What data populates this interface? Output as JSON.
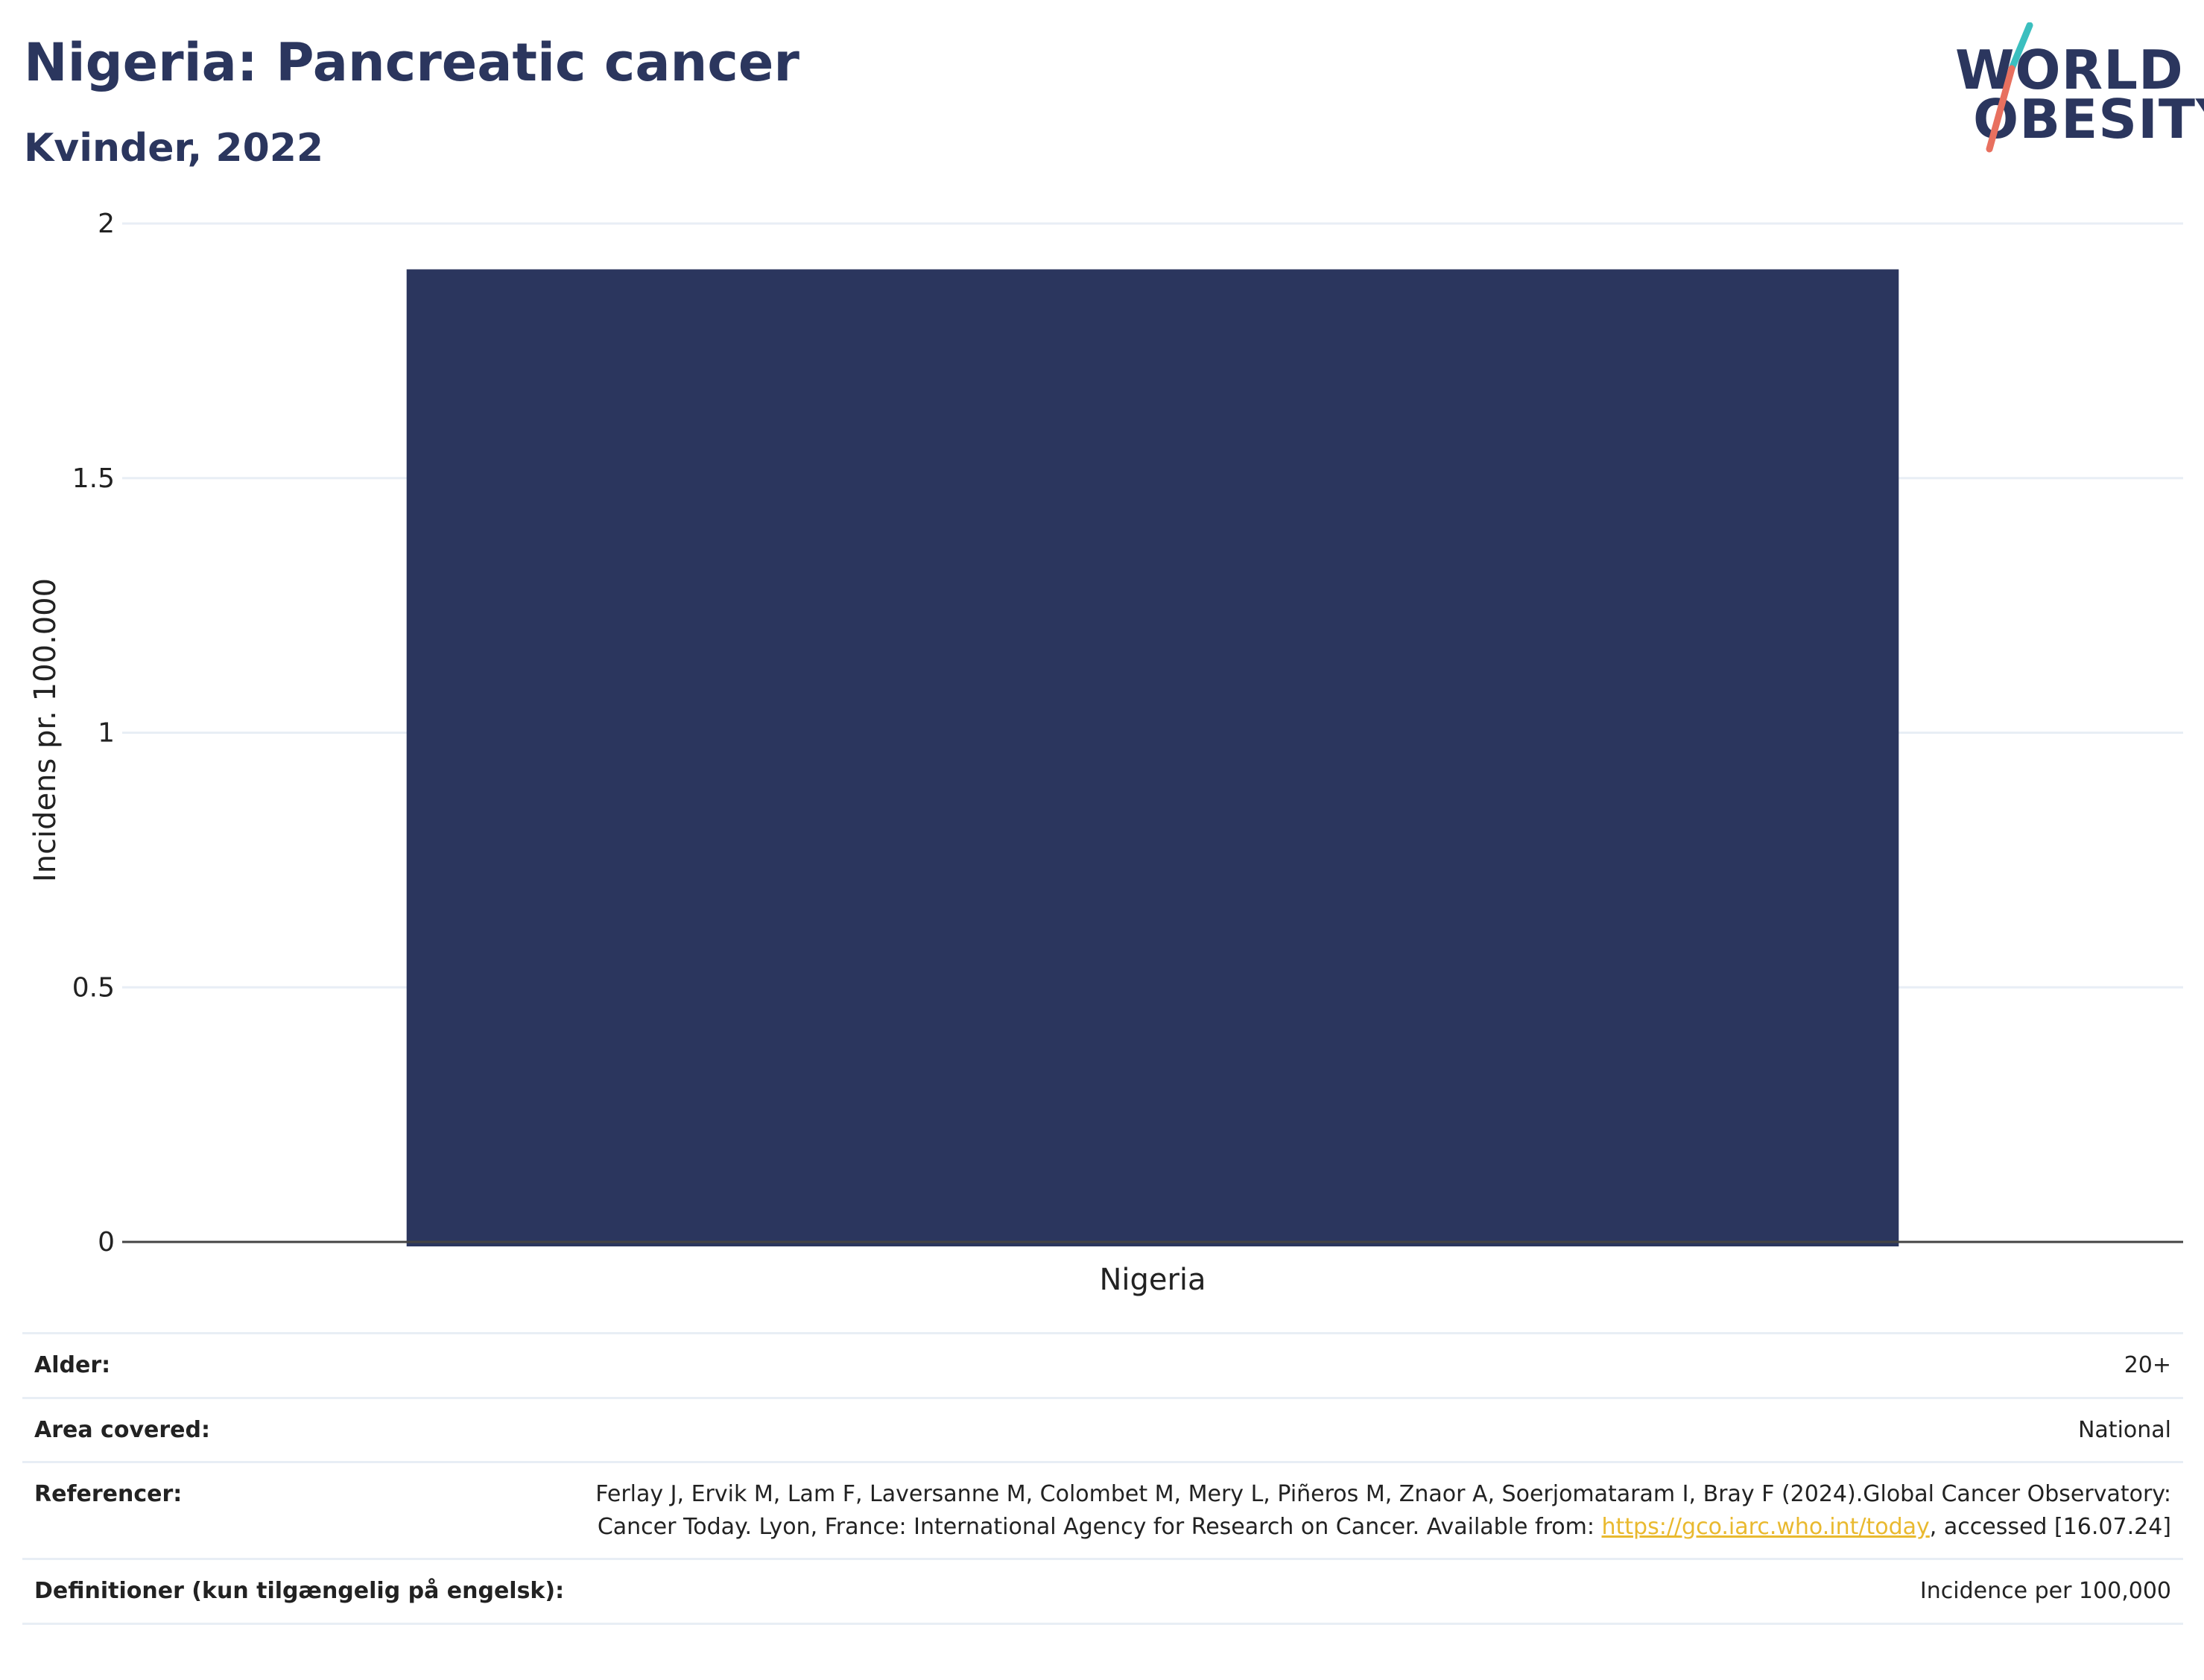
{
  "header": {
    "title": "Nigeria: Pancreatic cancer",
    "subtitle": "Kvinder, 2022"
  },
  "logo": {
    "line1": "WORLD",
    "line2": "OBESITY",
    "accent_colors": [
      "#3bbfbf",
      "#e8705f"
    ]
  },
  "chart_data": {
    "type": "bar",
    "categories": [
      "Nigeria"
    ],
    "values": [
      1.91
    ],
    "ylabel": "Incidens pr. 100.000",
    "xlabel": "",
    "ylim": [
      0,
      2
    ],
    "yticks": [
      0,
      0.5,
      1,
      1.5,
      2
    ],
    "ytick_labels": [
      "0",
      "0.5",
      "1",
      "1.5",
      "2"
    ],
    "bar_color": "#2b365e",
    "grid": true
  },
  "info": {
    "age": {
      "label": "Alder:",
      "value": "20+"
    },
    "area": {
      "label": "Area covered:",
      "value": "National"
    },
    "refs": {
      "label": "Referencer:",
      "text1": "Ferlay J, Ervik M, Lam F, Laversanne M, Colombet M, Mery L, Piñeros M, Znaor A, Soerjomataram I, Bray F (2024).Global Cancer Observatory: Cancer Today. Lyon, France: International Agency for Research on Cancer. Available from: ",
      "link": "https://gco.iarc.who.int/today",
      "text2": ", accessed [16.07.24]"
    },
    "defs": {
      "label": "Definitioner (kun tilgængelig på engelsk):",
      "value": "Incidence per 100,000"
    }
  }
}
